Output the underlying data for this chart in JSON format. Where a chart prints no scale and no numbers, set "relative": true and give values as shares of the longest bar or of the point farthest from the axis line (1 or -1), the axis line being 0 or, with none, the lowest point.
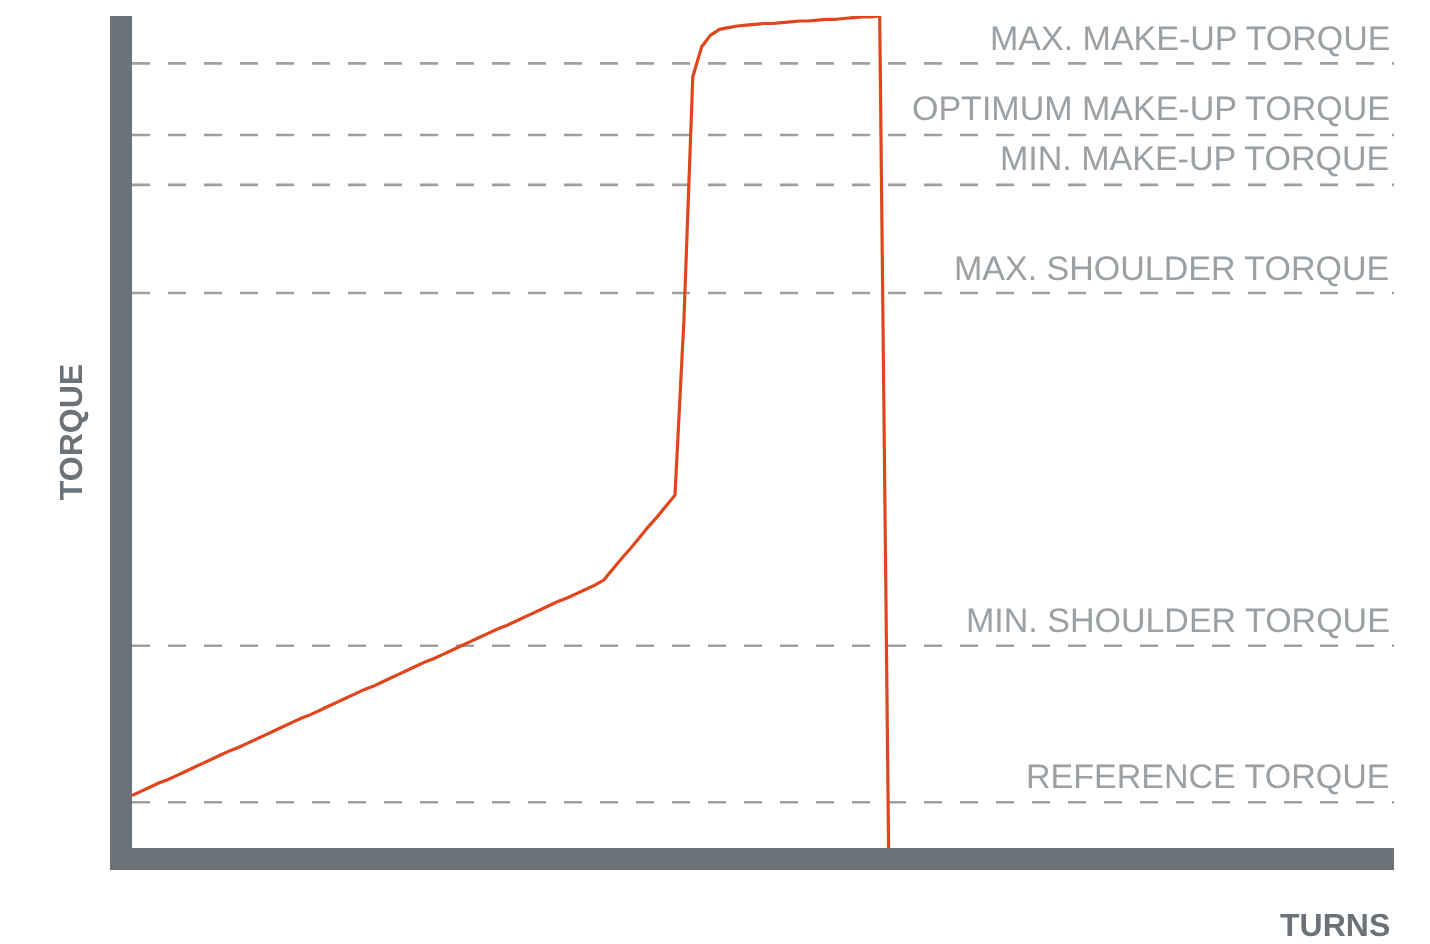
{
  "chart_data": {
    "type": "line",
    "relative": true,
    "annotations": [
      "TURNS"
    ],
    "ylabel": "TORQUE",
    "legend": false,
    "marker": "none",
    "line_style": "solid",
    "categories": [
      null,
      null,
      null,
      null,
      null,
      null,
      null,
      null,
      null,
      null,
      null,
      null,
      null,
      null,
      null,
      null,
      null,
      null,
      null,
      null,
      null,
      null,
      null,
      null,
      null,
      null,
      null,
      null,
      null,
      null,
      null,
      null,
      null,
      null,
      null,
      null,
      null,
      null,
      null,
      null,
      null,
      null,
      null,
      null,
      null,
      null,
      null,
      null,
      null,
      null,
      null,
      null,
      null,
      null,
      null,
      null,
      null,
      null,
      null,
      null,
      null,
      null,
      null,
      null,
      null,
      null,
      null,
      null,
      null,
      null,
      null,
      null,
      null,
      null,
      null,
      null,
      null,
      null,
      null,
      null,
      null,
      null,
      null,
      null,
      null,
      null
    ],
    "series": [
      {
        "color": "#e0461e",
        "values": [
          0.063,
          0.068,
          0.073,
          0.078,
          0.082,
          0.087,
          0.092,
          0.097,
          0.102,
          0.107,
          0.112,
          0.117,
          0.121,
          0.126,
          0.131,
          0.136,
          0.141,
          0.146,
          0.151,
          0.156,
          0.16,
          0.165,
          0.17,
          0.175,
          0.18,
          0.185,
          0.19,
          0.194,
          0.199,
          0.204,
          0.209,
          0.214,
          0.219,
          0.224,
          0.228,
          0.233,
          0.238,
          0.243,
          0.248,
          0.253,
          0.258,
          0.263,
          0.267,
          0.272,
          0.277,
          0.282,
          0.287,
          0.292,
          0.297,
          0.301,
          0.306,
          0.311,
          0.316,
          0.322,
          0.335,
          0.348,
          0.36,
          0.373,
          0.386,
          0.398,
          0.411,
          0.424,
          0.633,
          0.927,
          0.963,
          0.977,
          0.984,
          0.986,
          0.988,
          0.989,
          0.99,
          0.991,
          0.991,
          0.992,
          0.993,
          0.994,
          0.994,
          0.995,
          0.996,
          0.996,
          0.997,
          0.998,
          0.999,
          0.999,
          1.0,
          0.0
        ]
      }
    ],
    "ref_lines": [
      {
        "axis": "y",
        "value": 0.943,
        "label": "MAX. MAKE-UP TORQUE",
        "color": "#9aa0a4",
        "line_style": "dashed"
      },
      {
        "axis": "y",
        "value": 0.857,
        "label": "OPTIMUM MAKE-UP TORQUE",
        "color": "#9aa0a4",
        "line_style": "dashed"
      },
      {
        "axis": "y",
        "value": 0.797,
        "label": "MIN. MAKE-UP TORQUE",
        "color": "#9aa0a4",
        "line_style": "dashed"
      },
      {
        "axis": "y",
        "value": 0.667,
        "label": "MAX. SHOULDER TORQUE",
        "color": "#9aa0a4",
        "line_style": "dashed"
      },
      {
        "axis": "y",
        "value": 0.243,
        "label": "MIN. SHOULDER TORQUE",
        "color": "#9aa0a4",
        "line_style": "dashed"
      },
      {
        "axis": "y",
        "value": 0.055,
        "label": "REFERENCE TORQUE",
        "color": "#9aa0a4",
        "line_style": "dashed"
      }
    ]
  }
}
